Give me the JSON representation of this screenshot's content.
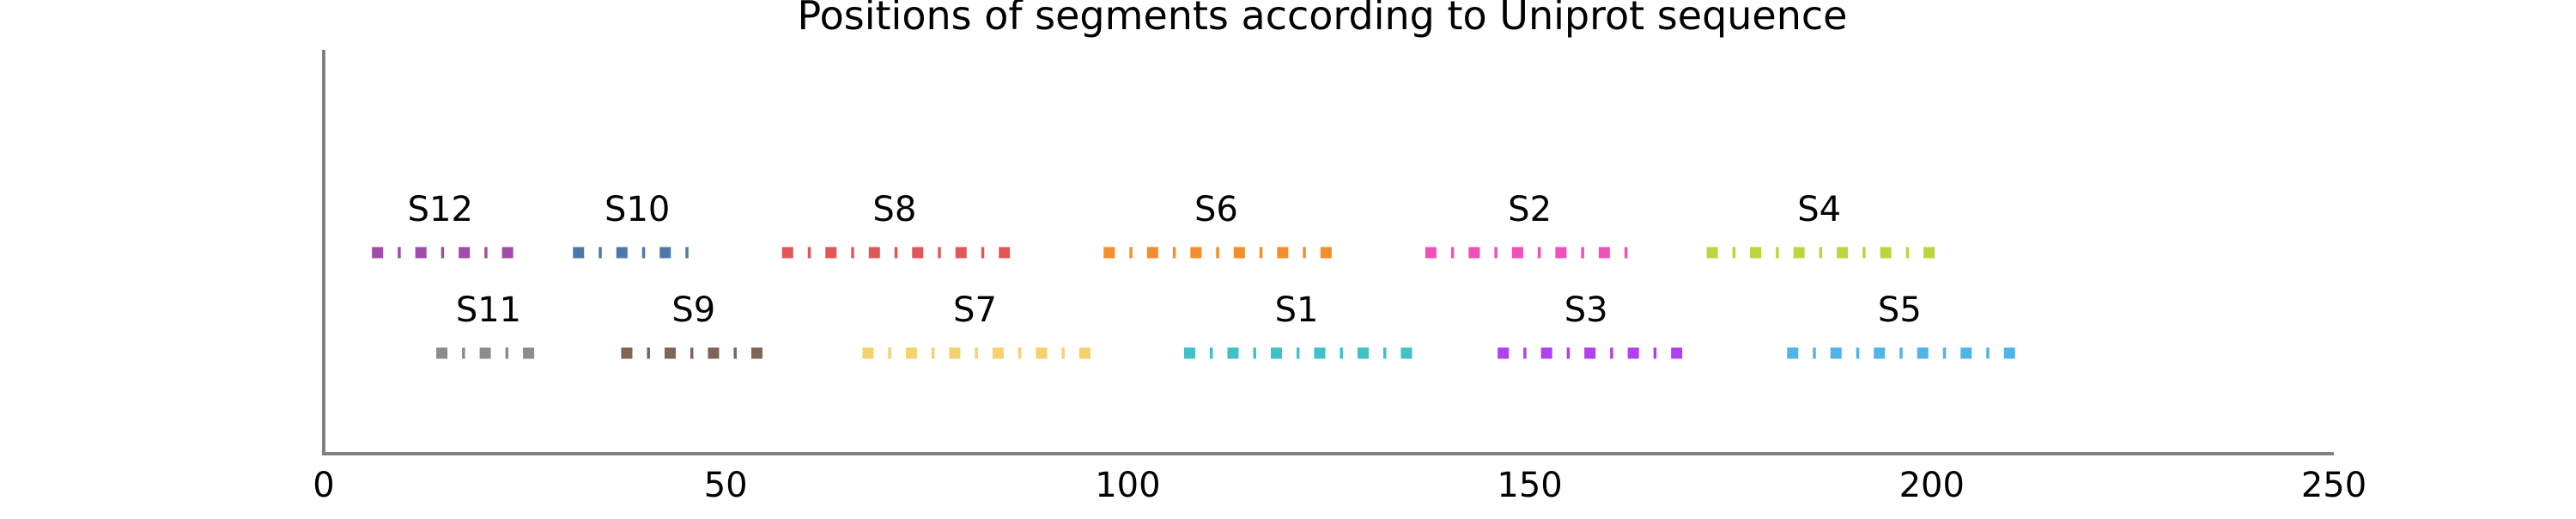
{
  "chart_data": {
    "type": "scatter",
    "title": "Positions of segments according to Uniprot sequence",
    "xlabel": "",
    "ylabel": "",
    "xlim": [
      0,
      250
    ],
    "xticks": [
      0,
      50,
      100,
      150,
      200,
      250
    ],
    "grid": false,
    "legend": "none",
    "axis_color": "#808080",
    "series": [
      {
        "name": "S12",
        "row": "upper",
        "start": 6,
        "end": 23,
        "color": "#a04ca8"
      },
      {
        "name": "S10",
        "row": "upper",
        "start": 31,
        "end": 47,
        "color": "#4e79a7"
      },
      {
        "name": "S8",
        "row": "upper",
        "start": 57,
        "end": 85,
        "color": "#e15759"
      },
      {
        "name": "S6",
        "row": "upper",
        "start": 97,
        "end": 125,
        "color": "#f28e2b"
      },
      {
        "name": "S2",
        "row": "upper",
        "start": 137,
        "end": 163,
        "color": "#f050b8"
      },
      {
        "name": "S4",
        "row": "upper",
        "start": 172,
        "end": 200,
        "color": "#bcd53c"
      },
      {
        "name": "S11",
        "row": "lower",
        "start": 14,
        "end": 27,
        "color": "#8c8c8c"
      },
      {
        "name": "S9",
        "row": "lower",
        "start": 37,
        "end": 55,
        "color": "#7f6457"
      },
      {
        "name": "S7",
        "row": "lower",
        "start": 67,
        "end": 95,
        "color": "#f7d070"
      },
      {
        "name": "S1",
        "row": "lower",
        "start": 107,
        "end": 135,
        "color": "#40c0c8"
      },
      {
        "name": "S3",
        "row": "lower",
        "start": 146,
        "end": 168,
        "color": "#b040f0"
      },
      {
        "name": "S5",
        "row": "lower",
        "start": 182,
        "end": 210,
        "color": "#50b4e8"
      }
    ]
  }
}
